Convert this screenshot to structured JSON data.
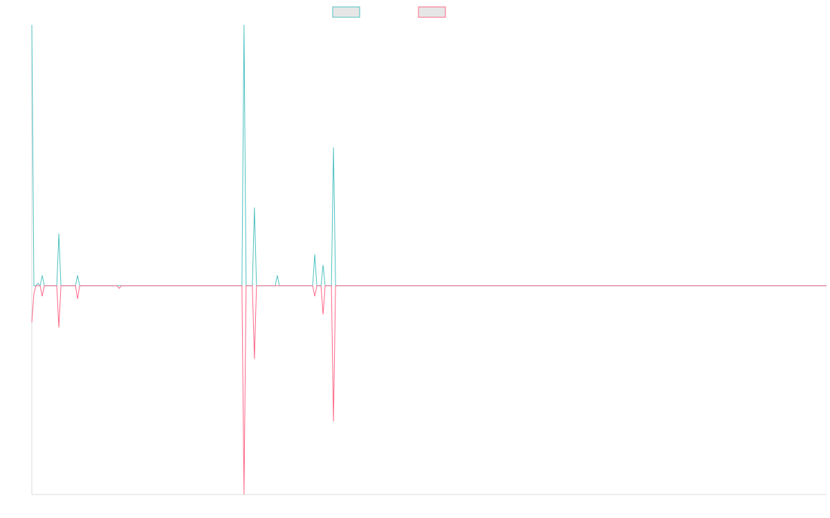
{
  "chart_data": {
    "type": "line",
    "title": "",
    "xlabel": "",
    "ylabel": "",
    "grid": false,
    "legend_position": "top-center",
    "series": [
      {
        "color": "#4bc0c0",
        "points": [
          [
            0,
            100
          ],
          [
            1,
            0
          ],
          [
            2,
            0
          ],
          [
            3,
            1
          ],
          [
            4,
            0
          ],
          [
            5,
            4
          ],
          [
            6,
            0
          ],
          [
            7,
            0
          ],
          [
            8,
            0
          ],
          [
            9,
            0
          ],
          [
            10,
            0
          ],
          [
            11,
            0
          ],
          [
            12,
            0
          ],
          [
            13,
            20
          ],
          [
            14,
            0
          ],
          [
            15,
            0
          ],
          [
            16,
            0
          ],
          [
            17,
            0
          ],
          [
            18,
            0
          ],
          [
            19,
            0
          ],
          [
            20,
            0
          ],
          [
            21,
            0
          ],
          [
            22,
            4
          ],
          [
            23,
            0
          ],
          [
            24,
            0
          ],
          [
            25,
            0
          ],
          [
            26,
            0
          ],
          [
            27,
            0
          ],
          [
            28,
            0
          ],
          [
            29,
            0
          ],
          [
            30,
            0
          ],
          [
            31,
            0
          ],
          [
            32,
            0
          ],
          [
            33,
            0
          ],
          [
            34,
            0
          ],
          [
            35,
            0
          ],
          [
            36,
            0
          ],
          [
            37,
            0
          ],
          [
            38,
            0
          ],
          [
            39,
            0
          ],
          [
            40,
            0
          ],
          [
            41,
            0
          ],
          [
            42,
            0
          ],
          [
            43,
            0
          ],
          [
            44,
            0
          ],
          [
            45,
            0
          ],
          [
            46,
            0
          ],
          [
            47,
            0
          ],
          [
            48,
            0
          ],
          [
            49,
            0
          ],
          [
            50,
            0
          ],
          [
            100,
            0
          ],
          [
            101,
            0
          ],
          [
            102,
            100
          ],
          [
            103,
            0
          ],
          [
            104,
            0
          ],
          [
            105,
            0
          ],
          [
            106,
            0
          ],
          [
            107,
            30
          ],
          [
            108,
            0
          ],
          [
            109,
            0
          ],
          [
            110,
            0
          ],
          [
            111,
            0
          ],
          [
            112,
            0
          ],
          [
            113,
            0
          ],
          [
            114,
            0
          ],
          [
            115,
            0
          ],
          [
            116,
            0
          ],
          [
            117,
            0
          ],
          [
            118,
            4
          ],
          [
            119,
            0
          ],
          [
            120,
            0
          ],
          [
            121,
            0
          ],
          [
            122,
            0
          ],
          [
            123,
            0
          ],
          [
            124,
            0
          ],
          [
            125,
            0
          ],
          [
            126,
            0
          ],
          [
            127,
            0
          ],
          [
            128,
            0
          ],
          [
            129,
            0
          ],
          [
            130,
            0
          ],
          [
            131,
            0
          ],
          [
            132,
            0
          ],
          [
            133,
            0
          ],
          [
            134,
            0
          ],
          [
            135,
            0
          ],
          [
            136,
            12
          ],
          [
            137,
            0
          ],
          [
            138,
            0
          ],
          [
            139,
            0
          ],
          [
            140,
            8
          ],
          [
            141,
            0
          ],
          [
            142,
            0
          ],
          [
            143,
            0
          ],
          [
            144,
            0
          ],
          [
            145,
            53
          ],
          [
            146,
            0
          ],
          [
            150,
            0
          ],
          [
            200,
            0
          ],
          [
            250,
            0
          ],
          [
            300,
            0
          ],
          [
            350,
            0
          ],
          [
            382,
            0
          ]
        ]
      },
      {
        "color": "#ff6384",
        "points": [
          [
            0,
            -14
          ],
          [
            1,
            -3
          ],
          [
            2,
            0
          ],
          [
            3,
            0
          ],
          [
            4,
            0
          ],
          [
            5,
            -4
          ],
          [
            6,
            0
          ],
          [
            7,
            0
          ],
          [
            8,
            0
          ],
          [
            9,
            0
          ],
          [
            10,
            0
          ],
          [
            11,
            0
          ],
          [
            12,
            0
          ],
          [
            13,
            -16
          ],
          [
            14,
            0
          ],
          [
            15,
            0
          ],
          [
            16,
            0
          ],
          [
            17,
            0
          ],
          [
            18,
            0
          ],
          [
            19,
            0
          ],
          [
            20,
            0
          ],
          [
            21,
            0
          ],
          [
            22,
            -5
          ],
          [
            23,
            0
          ],
          [
            24,
            0
          ],
          [
            25,
            0
          ],
          [
            26,
            0
          ],
          [
            27,
            0
          ],
          [
            28,
            0
          ],
          [
            29,
            0
          ],
          [
            30,
            0
          ],
          [
            31,
            0
          ],
          [
            32,
            0
          ],
          [
            33,
            0
          ],
          [
            34,
            0
          ],
          [
            35,
            0
          ],
          [
            36,
            0
          ],
          [
            37,
            0
          ],
          [
            38,
            0
          ],
          [
            39,
            0
          ],
          [
            40,
            0
          ],
          [
            41,
            0
          ],
          [
            42,
            -1
          ],
          [
            43,
            0
          ],
          [
            44,
            0
          ],
          [
            45,
            0
          ],
          [
            46,
            0
          ],
          [
            47,
            0
          ],
          [
            48,
            0
          ],
          [
            49,
            0
          ],
          [
            50,
            0
          ],
          [
            100,
            0
          ],
          [
            101,
            0
          ],
          [
            102,
            -80
          ],
          [
            103,
            0
          ],
          [
            104,
            0
          ],
          [
            105,
            0
          ],
          [
            106,
            0
          ],
          [
            107,
            -28
          ],
          [
            108,
            0
          ],
          [
            109,
            0
          ],
          [
            110,
            0
          ],
          [
            111,
            0
          ],
          [
            112,
            0
          ],
          [
            113,
            0
          ],
          [
            114,
            0
          ],
          [
            115,
            0
          ],
          [
            116,
            0
          ],
          [
            117,
            0
          ],
          [
            118,
            0
          ],
          [
            119,
            0
          ],
          [
            120,
            0
          ],
          [
            121,
            0
          ],
          [
            122,
            0
          ],
          [
            123,
            0
          ],
          [
            124,
            0
          ],
          [
            125,
            0
          ],
          [
            126,
            0
          ],
          [
            127,
            0
          ],
          [
            128,
            0
          ],
          [
            129,
            0
          ],
          [
            130,
            0
          ],
          [
            131,
            0
          ],
          [
            132,
            0
          ],
          [
            133,
            0
          ],
          [
            134,
            0
          ],
          [
            135,
            0
          ],
          [
            136,
            -4
          ],
          [
            137,
            0
          ],
          [
            138,
            0
          ],
          [
            139,
            0
          ],
          [
            140,
            -11
          ],
          [
            141,
            0
          ],
          [
            142,
            0
          ],
          [
            143,
            0
          ],
          [
            144,
            0
          ],
          [
            145,
            -52
          ],
          [
            146,
            0
          ],
          [
            150,
            0
          ],
          [
            200,
            0
          ],
          [
            250,
            0
          ],
          [
            300,
            0
          ],
          [
            350,
            0
          ],
          [
            382,
            0
          ]
        ]
      }
    ],
    "xlim": [
      0,
      382
    ],
    "ylim": [
      -80,
      100
    ],
    "colors": {
      "series_1": "#4bc0c0",
      "series_2": "#ff6384",
      "legend_fill": "#e6e6e6",
      "axis": "#d9d9d9"
    }
  }
}
